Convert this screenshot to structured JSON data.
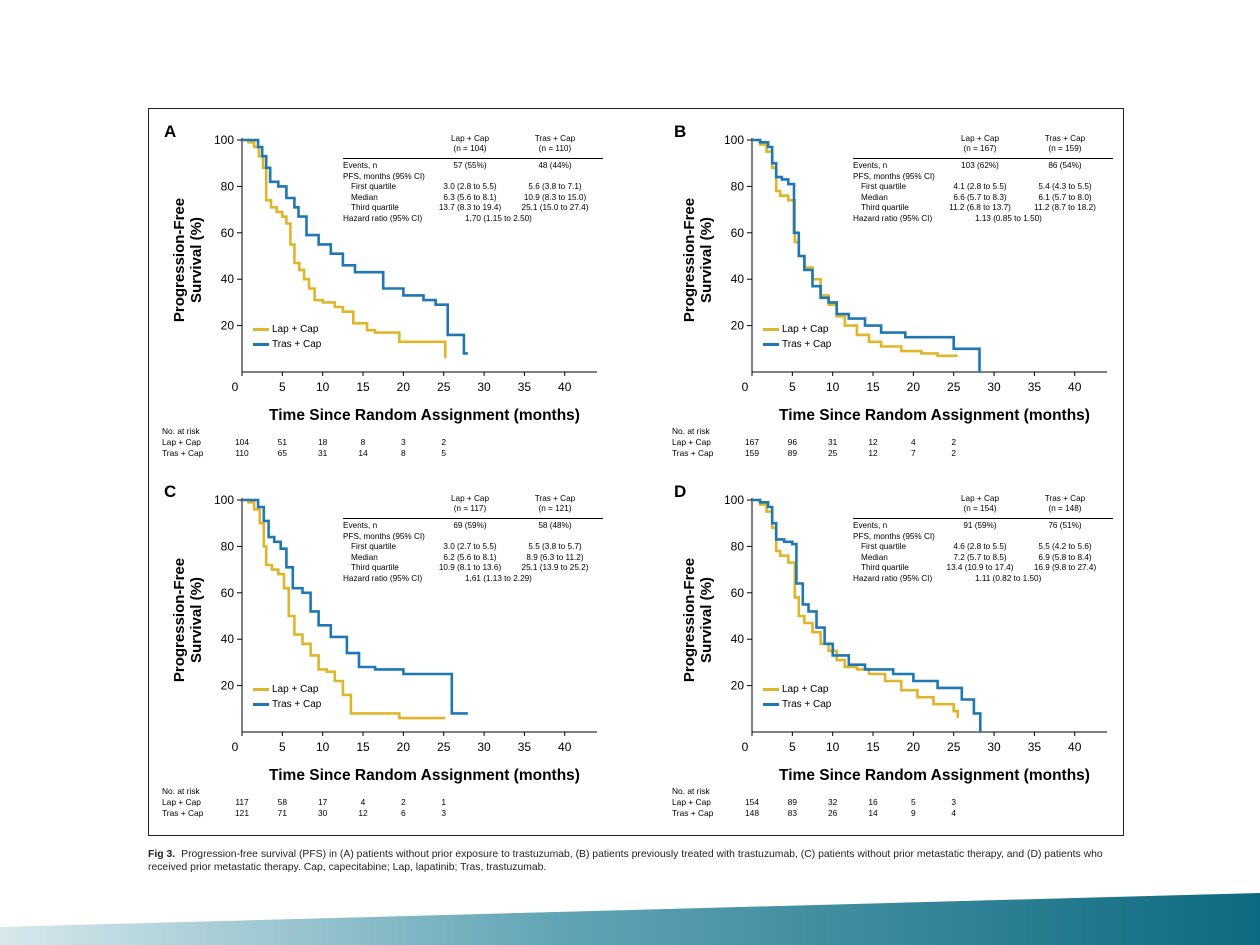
{
  "colors": {
    "lap_cap": "#e0b52a",
    "tras_cap": "#1f77b4"
  },
  "caption": {
    "label": "Fig 3.",
    "text": "Progression-free survival (PFS) in (A) patients without prior exposure to trastuzumab, (B) patients previously treated with trastuzumab, (C) patients without prior metastatic therapy, and (D) patients who received prior metastatic therapy. Cap, capecitabine; Lap, lapatinib; Tras, trastuzumab."
  },
  "chart_data": [
    {
      "panel": "A",
      "type": "line",
      "xlabel": "Time Since Random Assignment (months)",
      "ylabel": [
        "Progression-Free",
        "Survival (%)"
      ],
      "xlim": [
        0,
        44
      ],
      "ylim": [
        0,
        100
      ],
      "xticks": [
        0,
        5,
        10,
        15,
        20,
        25,
        30,
        35,
        40
      ],
      "yticks": [
        20,
        40,
        60,
        80,
        100
      ],
      "legend": {
        "position": "bottom-left",
        "entries": [
          "Lap + Cap",
          "Tras + Cap"
        ]
      },
      "series": [
        {
          "name": "Lap + Cap",
          "color": "#e0b52a",
          "x": [
            0,
            0.8,
            1.5,
            2.1,
            2.6,
            3.0,
            3.6,
            4.3,
            5.0,
            5.5,
            6.0,
            6.5,
            7.1,
            7.7,
            8.3,
            9.0,
            10.0,
            11.5,
            12.5,
            13.8,
            15.5,
            16.5,
            19.5,
            22.0,
            25.2
          ],
          "y": [
            100,
            99,
            97,
            93,
            88,
            74,
            71,
            69,
            67,
            64,
            55,
            47,
            44,
            40,
            36,
            31,
            30,
            28,
            26,
            21,
            18,
            17,
            13,
            13,
            6
          ]
        },
        {
          "name": "Tras + Cap",
          "color": "#1f77b4",
          "x": [
            0,
            1.0,
            2.0,
            2.5,
            3.0,
            3.5,
            4.5,
            5.5,
            6.5,
            7.0,
            8.0,
            9.5,
            11.0,
            12.5,
            14.0,
            17.5,
            20.0,
            22.5,
            24.0,
            25.5,
            26.5,
            27.5,
            28.0
          ],
          "y": [
            100,
            100,
            97,
            93,
            88,
            82,
            80,
            75,
            71,
            67,
            59,
            55,
            51,
            46,
            43,
            36,
            33,
            31,
            29,
            16,
            16,
            8,
            8
          ]
        }
      ],
      "table": {
        "headers": [
          [
            "Lap + Cap",
            "(n = 104)"
          ],
          [
            "Tras + Cap",
            "(n = 110)"
          ]
        ],
        "rows": [
          {
            "label": "Events, n",
            "lap": "57 (55%)",
            "tras": "48 (44%)"
          },
          {
            "label": "PFS, months (95% CI)",
            "lap": "",
            "tras": ""
          },
          {
            "label": "First quartile",
            "lap": "3.0 (2.8 to 5.5)",
            "tras": "5.6 (3.8 to 7.1)"
          },
          {
            "label": "Median",
            "lap": "6.3 (5.6 to 8.1)",
            "tras": "10.9 (8.3 to 15.0)"
          },
          {
            "label": "Third quartile",
            "lap": "13.7 (8.3 to 19.4)",
            "tras": "25.1 (15.0 to 27.4)"
          },
          {
            "label": "Hazard ratio (95% CI)",
            "hr": "1.70 (1.15 to 2.50)"
          }
        ]
      },
      "at_risk": {
        "title": "No. at risk",
        "groups": [
          {
            "label": "Lap + Cap",
            "values": [
              "104",
              "51",
              "18",
              "8",
              "3",
              "2"
            ]
          },
          {
            "label": "Tras + Cap",
            "values": [
              "110",
              "65",
              "31",
              "14",
              "8",
              "5"
            ]
          }
        ]
      }
    },
    {
      "panel": "B",
      "type": "line",
      "xlabel": "Time Since Random Assignment (months)",
      "ylabel": [
        "Progression-Free",
        "Survival (%)"
      ],
      "xlim": [
        0,
        44
      ],
      "ylim": [
        0,
        100
      ],
      "xticks": [
        0,
        5,
        10,
        15,
        20,
        25,
        30,
        35,
        40
      ],
      "yticks": [
        20,
        40,
        60,
        80,
        100
      ],
      "legend": {
        "position": "bottom-left",
        "entries": [
          "Lap + Cap",
          "Tras + Cap"
        ]
      },
      "series": [
        {
          "name": "Lap + Cap",
          "color": "#e0b52a",
          "x": [
            0,
            1.0,
            1.8,
            2.5,
            3.0,
            3.5,
            4.5,
            5.3,
            5.8,
            6.5,
            7.5,
            8.5,
            9.5,
            10.5,
            11.5,
            13.0,
            14.5,
            16.0,
            18.5,
            21.0,
            23.0,
            25.5
          ],
          "y": [
            100,
            98,
            95,
            88,
            78,
            76,
            74,
            56,
            50,
            45,
            40,
            33,
            29,
            24,
            20,
            16,
            13,
            11,
            9,
            8,
            7,
            7
          ]
        },
        {
          "name": "Tras + Cap",
          "color": "#1f77b4",
          "x": [
            0,
            1.0,
            2.0,
            2.5,
            3.0,
            3.7,
            4.5,
            5.2,
            5.8,
            6.5,
            7.5,
            8.5,
            9.5,
            10.5,
            12.0,
            14.0,
            16.0,
            19.0,
            22.0,
            25.0,
            27.5,
            28.2
          ],
          "y": [
            100,
            99,
            97,
            90,
            84,
            83,
            81,
            60,
            50,
            44,
            37,
            32,
            30,
            25,
            23,
            20,
            17,
            15,
            15,
            10,
            10,
            0
          ]
        }
      ],
      "table": {
        "headers": [
          [
            "Lap + Cap",
            "(n = 167)"
          ],
          [
            "Tras + Cap",
            "(n = 159)"
          ]
        ],
        "rows": [
          {
            "label": "Events, n",
            "lap": "103 (62%)",
            "tras": "86 (54%)"
          },
          {
            "label": "PFS, months (95% CI)",
            "lap": "",
            "tras": ""
          },
          {
            "label": "First quartile",
            "lap": "4.1 (2.8 to 5.5)",
            "tras": "5.4 (4.3 to 5.5)"
          },
          {
            "label": "Median",
            "lap": "6.6 (5.7 to 8.3)",
            "tras": "6.1 (5.7 to 8.0)"
          },
          {
            "label": "Third quartile",
            "lap": "11.2 (6.8 to 13.7)",
            "tras": "11.2 (8.7 to 18.2)"
          },
          {
            "label": "Hazard ratio (95% CI)",
            "hr": "1.13 (0.85 to 1.50)"
          }
        ]
      },
      "at_risk": {
        "title": "No. at risk",
        "groups": [
          {
            "label": "Lap + Cap",
            "values": [
              "167",
              "96",
              "31",
              "12",
              "4",
              "2"
            ]
          },
          {
            "label": "Tras + Cap",
            "values": [
              "159",
              "89",
              "25",
              "12",
              "7",
              "2"
            ]
          }
        ]
      }
    },
    {
      "panel": "C",
      "type": "line",
      "xlabel": "Time Since Random Assignment (months)",
      "ylabel": [
        "Progression-Free",
        "Survival (%)"
      ],
      "xlim": [
        0,
        44
      ],
      "ylim": [
        0,
        100
      ],
      "xticks": [
        0,
        5,
        10,
        15,
        20,
        25,
        30,
        35,
        40
      ],
      "yticks": [
        20,
        40,
        60,
        80,
        100
      ],
      "legend": {
        "position": "bottom-left",
        "entries": [
          "Lap + Cap",
          "Tras + Cap"
        ]
      },
      "series": [
        {
          "name": "Lap + Cap",
          "color": "#e0b52a",
          "x": [
            0,
            0.8,
            1.5,
            2.2,
            2.7,
            3.0,
            3.7,
            4.5,
            5.2,
            5.8,
            6.5,
            7.5,
            8.5,
            9.5,
            10.5,
            11.5,
            12.5,
            13.5,
            14.5,
            16.5,
            19.5,
            22.5,
            25.2
          ],
          "y": [
            100,
            99,
            96,
            90,
            80,
            72,
            70,
            68,
            62,
            50,
            42,
            38,
            33,
            27,
            26,
            22,
            16,
            8,
            8,
            8,
            6,
            6,
            6
          ]
        },
        {
          "name": "Tras + Cap",
          "color": "#1f77b4",
          "x": [
            0,
            1.0,
            2.0,
            2.7,
            3.3,
            4.0,
            4.8,
            5.5,
            6.3,
            7.5,
            8.5,
            9.5,
            11.0,
            13.0,
            14.5,
            16.5,
            20.0,
            25.0,
            26.0,
            28.0
          ],
          "y": [
            100,
            100,
            97,
            91,
            84,
            82,
            79,
            71,
            62,
            60,
            52,
            46,
            41,
            34,
            28,
            27,
            25,
            25,
            8,
            8
          ]
        }
      ],
      "table": {
        "headers": [
          [
            "Lap + Cap",
            "(n = 117)"
          ],
          [
            "Tras + Cap",
            "(n = 121)"
          ]
        ],
        "rows": [
          {
            "label": "Events, n",
            "lap": "69 (59%)",
            "tras": "58 (48%)"
          },
          {
            "label": "PFS, months (95% CI)",
            "lap": "",
            "tras": ""
          },
          {
            "label": "First quartile",
            "lap": "3.0 (2.7 to 5.5)",
            "tras": "5.5 (3.8 to 5.7)"
          },
          {
            "label": "Median",
            "lap": "6.2 (5.6 to 8.1)",
            "tras": "8.9 (6.3 to 11.2)"
          },
          {
            "label": "Third quartile",
            "lap": "10.9 (8.1 to 13.6)",
            "tras": "25.1 (13.9 to 25.2)"
          },
          {
            "label": "Hazard ratio (95% CI)",
            "hr": "1.61 (1.13 to 2.29)"
          }
        ]
      },
      "at_risk": {
        "title": "No. at risk",
        "groups": [
          {
            "label": "Lap + Cap",
            "values": [
              "117",
              "58",
              "17",
              "4",
              "2",
              "1"
            ]
          },
          {
            "label": "Tras + Cap",
            "values": [
              "121",
              "71",
              "30",
              "12",
              "6",
              "3"
            ]
          }
        ]
      }
    },
    {
      "panel": "D",
      "type": "line",
      "xlabel": "Time Since Random Assignment (months)",
      "ylabel": [
        "Progression-Free",
        "Survival (%)"
      ],
      "xlim": [
        0,
        44
      ],
      "ylim": [
        0,
        100
      ],
      "xticks": [
        0,
        5,
        10,
        15,
        20,
        25,
        30,
        35,
        40
      ],
      "yticks": [
        20,
        40,
        60,
        80,
        100
      ],
      "legend": {
        "position": "bottom-left",
        "entries": [
          "Lap + Cap",
          "Tras + Cap"
        ]
      },
      "series": [
        {
          "name": "Lap + Cap",
          "color": "#e0b52a",
          "x": [
            0,
            1.0,
            1.8,
            2.5,
            3.0,
            3.5,
            4.5,
            5.3,
            5.8,
            6.5,
            7.5,
            8.5,
            9.5,
            10.5,
            11.5,
            13.0,
            14.5,
            16.5,
            18.5,
            20.5,
            22.5,
            24.0,
            25.0,
            25.5
          ],
          "y": [
            100,
            98,
            95,
            88,
            78,
            76,
            73,
            58,
            50,
            47,
            43,
            38,
            35,
            31,
            28,
            27,
            25,
            22,
            18,
            15,
            12,
            12,
            9,
            6
          ]
        },
        {
          "name": "Tras + Cap",
          "color": "#1f77b4",
          "x": [
            0,
            1.0,
            2.0,
            2.5,
            3.0,
            4.0,
            5.0,
            5.5,
            6.3,
            7.0,
            8.0,
            9.0,
            10.0,
            12.0,
            14.0,
            16.0,
            17.5,
            20.0,
            23.0,
            26.0,
            27.5,
            28.3
          ],
          "y": [
            100,
            99,
            97,
            90,
            83,
            82,
            81,
            64,
            55,
            52,
            45,
            38,
            33,
            29,
            27,
            27,
            25,
            22,
            19,
            14,
            8,
            0
          ]
        }
      ],
      "table": {
        "headers": [
          [
            "Lap + Cap",
            "(n = 154)"
          ],
          [
            "Tras + Cap",
            "(n = 148)"
          ]
        ],
        "rows": [
          {
            "label": "Events, n",
            "lap": "91 (59%)",
            "tras": "76 (51%)"
          },
          {
            "label": "PFS, months (95% CI)",
            "lap": "",
            "tras": ""
          },
          {
            "label": "First quartile",
            "lap": "4.6 (2.8 to 5.5)",
            "tras": "5.5 (4.2 to 5.6)"
          },
          {
            "label": "Median",
            "lap": "7.2 (5.7 to 8.5)",
            "tras": "6.9 (5.8 to 8.4)"
          },
          {
            "label": "Third quartile",
            "lap": "13.4 (10.9 to 17.4)",
            "tras": "16.9 (9.8 to 27.4)"
          },
          {
            "label": "Hazard ratio (95% CI)",
            "hr": "1.11 (0.82 to 1.50)"
          }
        ]
      },
      "at_risk": {
        "title": "No. at risk",
        "groups": [
          {
            "label": "Lap + Cap",
            "values": [
              "154",
              "89",
              "32",
              "16",
              "5",
              "3"
            ]
          },
          {
            "label": "Tras + Cap",
            "values": [
              "148",
              "83",
              "26",
              "14",
              "9",
              "4"
            ]
          }
        ]
      }
    }
  ]
}
